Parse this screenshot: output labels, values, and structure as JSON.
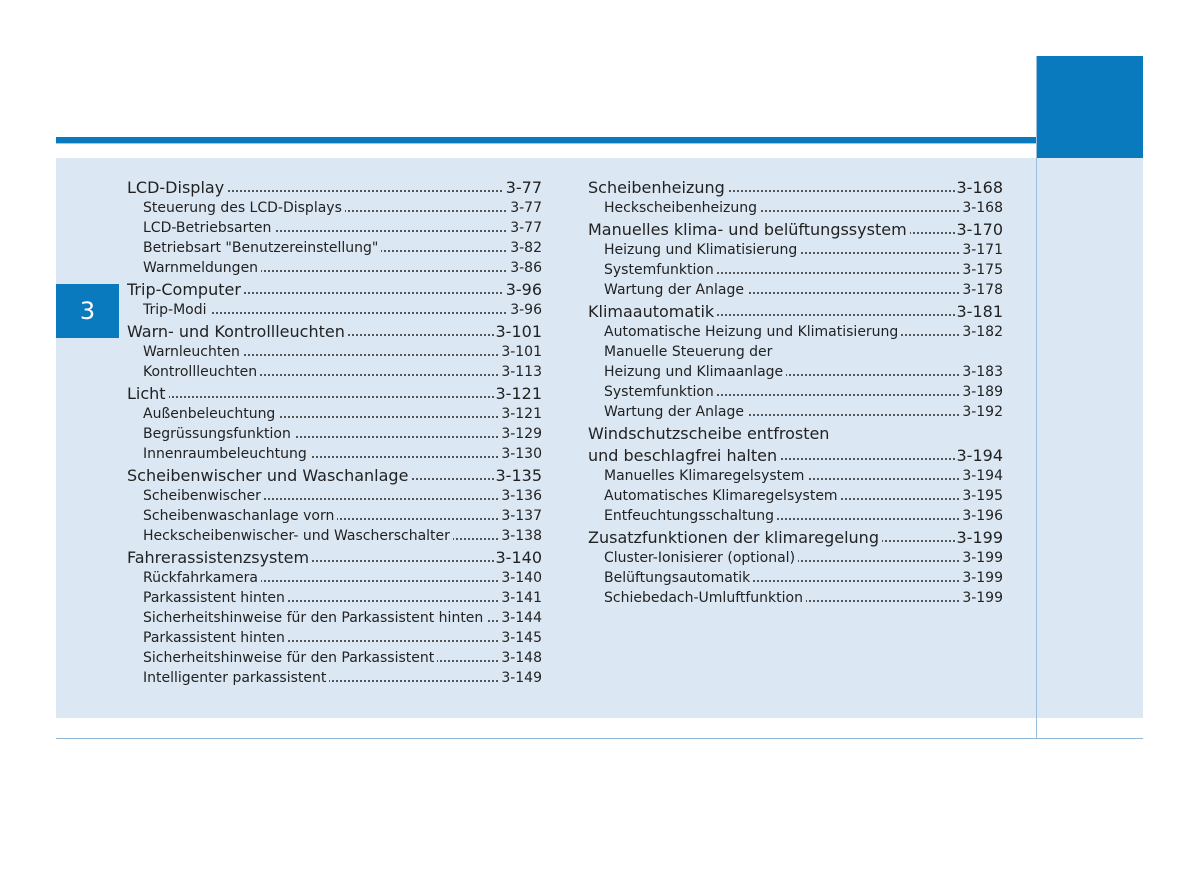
{
  "chapter_number": "3",
  "left_column": [
    {
      "level": "main",
      "title": "LCD-Display",
      "page": "3-77"
    },
    {
      "level": "sub",
      "title": "Steuerung des LCD-Displays",
      "page": "3-77"
    },
    {
      "level": "sub",
      "title": "LCD-Betriebsarten",
      "page": "3-77"
    },
    {
      "level": "sub",
      "title": "Betriebsart \"Benutzereinstellung\"",
      "page": "3-82"
    },
    {
      "level": "sub",
      "title": "Warnmeldungen",
      "page": "3-86"
    },
    {
      "level": "main",
      "title": "Trip-Computer",
      "page": "3-96"
    },
    {
      "level": "sub",
      "title": "Trip-Modi",
      "page": "3-96"
    },
    {
      "level": "main",
      "title": "Warn- und Kontrollleuchten",
      "page": "3-101"
    },
    {
      "level": "sub",
      "title": "Warnleuchten",
      "page": "3-101"
    },
    {
      "level": "sub",
      "title": "Kontrollleuchten",
      "page": "3-113"
    },
    {
      "level": "main",
      "title": "Licht",
      "page": "3-121"
    },
    {
      "level": "sub",
      "title": "Außenbeleuchtung",
      "page": "3-121"
    },
    {
      "level": "sub",
      "title": "Begrüssungsfunktion",
      "page": "3-129"
    },
    {
      "level": "sub",
      "title": "Innenraumbeleuchtung",
      "page": "3-130"
    },
    {
      "level": "main",
      "title": "Scheibenwischer und Waschanlage",
      "page": "3-135"
    },
    {
      "level": "sub",
      "title": "Scheibenwischer",
      "page": "3-136"
    },
    {
      "level": "sub",
      "title": "Scheibenwaschanlage vorn",
      "page": "3-137"
    },
    {
      "level": "sub",
      "title": "Heckscheibenwischer- und Wascherschalter",
      "page": "3-138"
    },
    {
      "level": "main",
      "title": "Fahrerassistenzsystem",
      "page": "3-140"
    },
    {
      "level": "sub",
      "title": "Rückfahrkamera",
      "page": "3-140"
    },
    {
      "level": "sub",
      "title": "Parkassistent hinten",
      "page": "3-141"
    },
    {
      "level": "sub",
      "title": "Sicherheitshinweise für den Parkassistent hinten",
      "page": "3-144"
    },
    {
      "level": "sub",
      "title": "Parkassistent hinten",
      "page": "3-145"
    },
    {
      "level": "sub",
      "title": "Sicherheitshinweise für den Parkassistent",
      "page": "3-148"
    },
    {
      "level": "sub",
      "title": "Intelligenter parkassistent",
      "page": "3-149"
    }
  ],
  "right_column": [
    {
      "level": "main",
      "title": "Scheibenheizung",
      "page": "3-168"
    },
    {
      "level": "sub",
      "title": "Heckscheibenheizung",
      "page": "3-168"
    },
    {
      "level": "main",
      "title": "Manuelles klima- und belüftungssystem",
      "page": "3-170"
    },
    {
      "level": "sub",
      "title": "Heizung und Klimatisierung",
      "page": "3-171"
    },
    {
      "level": "sub",
      "title": "Systemfunktion",
      "page": "3-175"
    },
    {
      "level": "sub",
      "title": "Wartung der Anlage",
      "page": "3-178"
    },
    {
      "level": "main",
      "title": "Klimaautomatik",
      "page": "3-181"
    },
    {
      "level": "sub",
      "title": "Automatische Heizung und Klimatisierung",
      "page": "3-182"
    },
    {
      "level": "sub",
      "title": "Manuelle Steuerung der",
      "page": ""
    },
    {
      "level": "sub",
      "title": "Heizung und Klimaanlage",
      "page": "3-183"
    },
    {
      "level": "sub",
      "title": "Systemfunktion",
      "page": "3-189"
    },
    {
      "level": "sub",
      "title": "Wartung der Anlage",
      "page": "3-192"
    },
    {
      "level": "main",
      "title": "Windschutzscheibe entfrosten",
      "page": ""
    },
    {
      "level": "main",
      "title": "und beschlagfrei halten",
      "page": "3-194"
    },
    {
      "level": "sub",
      "title": "Manuelles Klimaregelsystem",
      "page": "3-194"
    },
    {
      "level": "sub",
      "title": "Automatisches Klimaregelsystem",
      "page": "3-195"
    },
    {
      "level": "sub",
      "title": "Entfeuchtungsschaltung",
      "page": "3-196"
    },
    {
      "level": "main",
      "title": "Zusatzfunktionen der klimaregelung",
      "page": "3-199"
    },
    {
      "level": "sub",
      "title": "Cluster-Ionisierer (optional)",
      "page": "3-199"
    },
    {
      "level": "sub",
      "title": "Belüftungsautomatik",
      "page": "3-199"
    },
    {
      "level": "sub",
      "title": "Schiebedach-Umluftfunktion",
      "page": "3-199"
    }
  ],
  "colors": {
    "accent": "#0a7abf",
    "panel": "#dbe7f3"
  }
}
